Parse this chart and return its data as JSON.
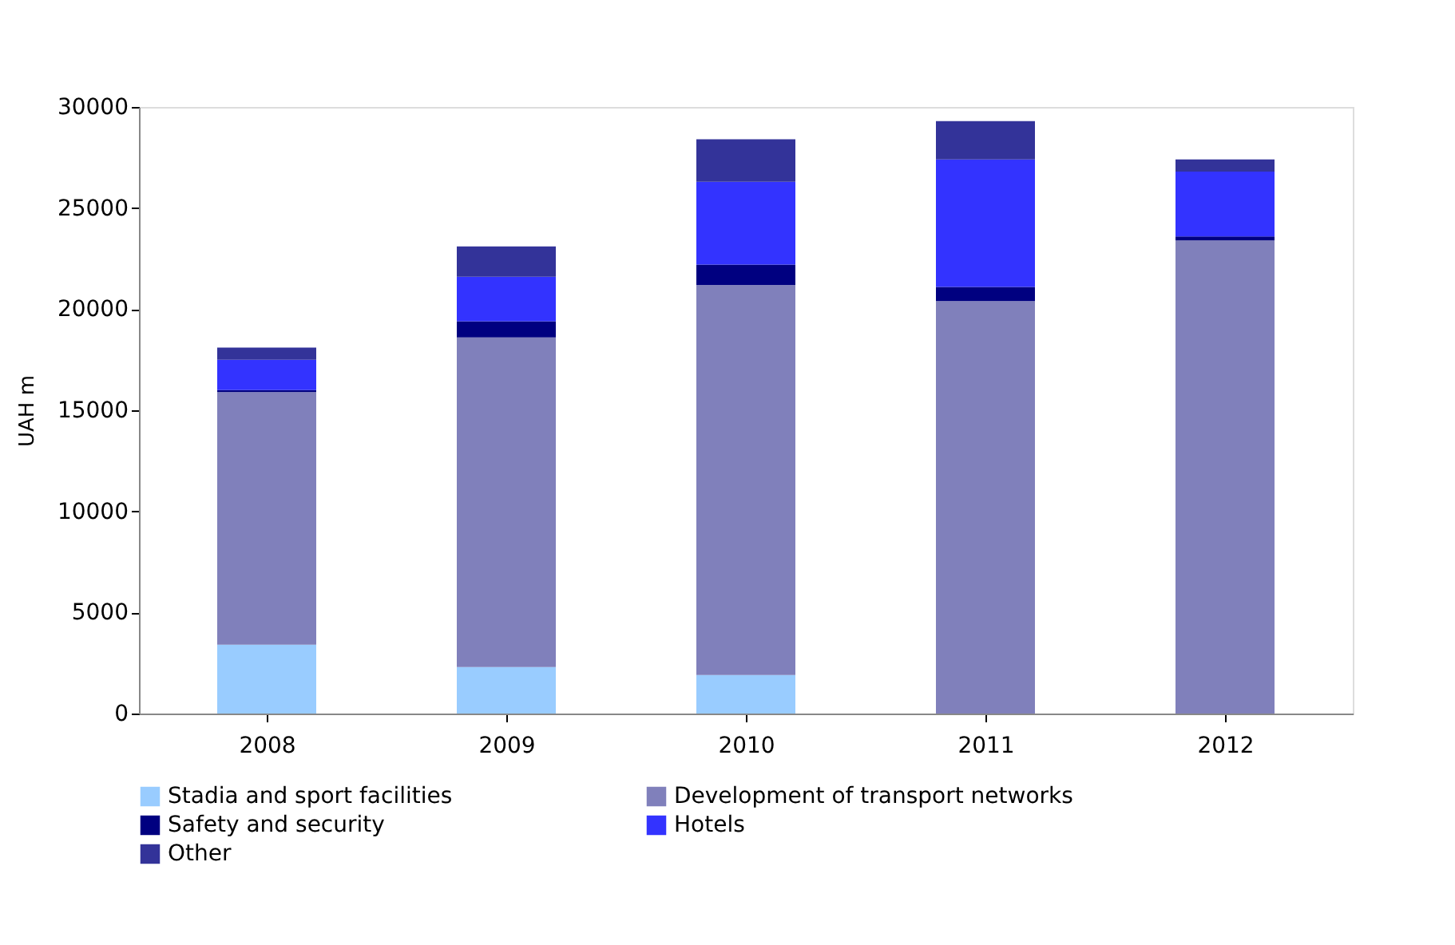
{
  "chart_data": {
    "type": "bar",
    "stacked": true,
    "ylabel": "UAH m",
    "categories": [
      "2008",
      "2009",
      "2010",
      "2011",
      "2012"
    ],
    "series": [
      {
        "name": "Stadia and sport facilities",
        "color": "#99ccff",
        "values": [
          3400,
          2300,
          1900,
          0,
          0
        ]
      },
      {
        "name": "Development of transport networks",
        "color": "#8080bb",
        "values": [
          12500,
          16300,
          19300,
          20400,
          23400
        ]
      },
      {
        "name": "Safety and security",
        "color": "#000080",
        "values": [
          100,
          800,
          1000,
          700,
          200
        ]
      },
      {
        "name": "Hotels",
        "color": "#3333ff",
        "values": [
          1500,
          2200,
          4100,
          6300,
          3200
        ]
      },
      {
        "name": "Other",
        "color": "#333399",
        "values": [
          600,
          1500,
          2100,
          1900,
          600
        ]
      }
    ],
    "ylim": [
      0,
      30000
    ],
    "yticks": [
      0,
      5000,
      10000,
      15000,
      20000,
      25000,
      30000
    ],
    "grid": false,
    "legend": "bottom"
  }
}
